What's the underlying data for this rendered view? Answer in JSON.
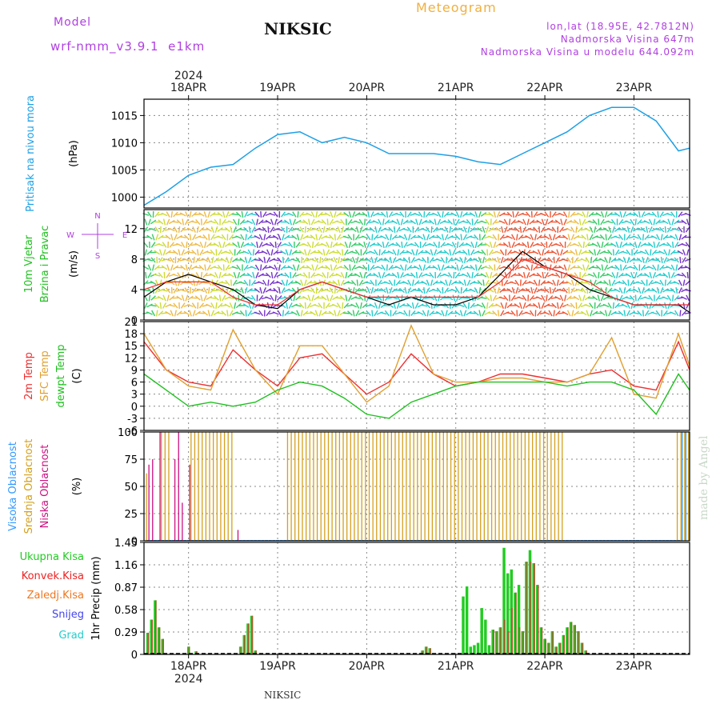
{
  "header": {
    "model_label": "Model",
    "model_name": "wrf-nmm_v3.9.1  e1km",
    "station": "NIKSIC",
    "product": "Meteogram",
    "location": "lon,lat (18.95E, 42.7812N)",
    "elevation": "Nadmorska Visina 647m",
    "model_elevation": "Nadmorska Visina u modelu 644.092m",
    "footer_station": "NIKSIC",
    "credit": "made by Angel"
  },
  "colors": {
    "pressure": "#1ea0e6",
    "t2m": "#ee3030",
    "sfc": "#e0a030",
    "dew": "#20c020",
    "cloud_high": "#3399ff",
    "cloud_mid": "#d4a020",
    "cloud_low": "#cc1080",
    "precip_total": "#22cc22",
    "precip_conv": "#ee2222",
    "precip_frz": "#ee7722",
    "snow": "#4444ee",
    "hail": "#22cccc",
    "purple_text": "#b040e0"
  },
  "time_axis": {
    "top_year": "2024",
    "bottom_year": "2024",
    "days": [
      "18APR",
      "19APR",
      "20APR",
      "21APR",
      "22APR",
      "23APR"
    ],
    "hours_from_start": [
      12,
      36,
      60,
      84,
      108,
      132
    ],
    "range_hours": [
      0,
      147
    ]
  },
  "chart_data": [
    {
      "type": "line",
      "panel": "pressure",
      "ylabel_left": "Pritisak na nivou mora",
      "unit": "(hPa)",
      "yticks": [
        1000,
        1005,
        1010,
        1015
      ],
      "ylim": [
        998,
        1018
      ],
      "x": [
        0,
        6,
        12,
        18,
        24,
        30,
        36,
        42,
        48,
        54,
        60,
        66,
        72,
        78,
        84,
        90,
        96,
        102,
        108,
        114,
        120,
        126,
        132,
        138,
        144,
        147
      ],
      "series": [
        {
          "key": "mslp",
          "color_key": "pressure",
          "values": [
            998.5,
            1001,
            1004,
            1005.5,
            1006,
            1009,
            1011.5,
            1012,
            1010,
            1011,
            1010,
            1008,
            1008,
            1008,
            1007.5,
            1006.5,
            1006,
            1008,
            1010,
            1012,
            1015,
            1016.5,
            1016.5,
            1014,
            1008.5,
            1009
          ]
        }
      ]
    },
    {
      "type": "line",
      "panel": "wind",
      "ylabel_left": [
        "10m Vjetar",
        "Brzina i Pravac"
      ],
      "unit": "(m/s)",
      "yticks": [
        0,
        4,
        8,
        12
      ],
      "ylim": [
        0,
        14.5
      ],
      "compass": [
        "N",
        "W",
        "E",
        "S"
      ],
      "x": [
        0,
        6,
        12,
        18,
        24,
        30,
        36,
        42,
        48,
        54,
        60,
        66,
        72,
        78,
        84,
        90,
        96,
        102,
        108,
        114,
        120,
        126,
        132,
        138,
        144,
        147
      ],
      "series": [
        {
          "key": "speed",
          "color": "#000000",
          "values": [
            3,
            5,
            6,
            5,
            4,
            2,
            1.5,
            4,
            5,
            4,
            3,
            2,
            3,
            2,
            2,
            3,
            6,
            9,
            7,
            6,
            4,
            3,
            2,
            2,
            2,
            1
          ]
        },
        {
          "key": "gust",
          "color_key": "t2m",
          "values": [
            4,
            5,
            5,
            5,
            3,
            2,
            2,
            4,
            5,
            4,
            3,
            3,
            3,
            3,
            3,
            3,
            5,
            8,
            7,
            6,
            5,
            3,
            2,
            2,
            2,
            2
          ]
        }
      ]
    },
    {
      "type": "line",
      "panel": "temperature",
      "ylabel_left": [
        "2m Temp",
        "SFC Temp",
        "dewpt Temp"
      ],
      "unit": "(C)",
      "yticks": [
        -6,
        -3,
        0,
        3,
        6,
        9,
        12,
        15,
        18,
        21
      ],
      "ylim": [
        -6,
        21
      ],
      "x": [
        0,
        6,
        12,
        18,
        24,
        30,
        36,
        42,
        48,
        54,
        60,
        66,
        72,
        78,
        84,
        90,
        96,
        102,
        108,
        114,
        120,
        126,
        132,
        138,
        144,
        147
      ],
      "series": [
        {
          "key": "t2m",
          "color_key": "t2m",
          "values": [
            16,
            9,
            6,
            5,
            14,
            9,
            5,
            12,
            13,
            8,
            3,
            6,
            13,
            8,
            5,
            6,
            8,
            8,
            7,
            6,
            8,
            9,
            5,
            4,
            16,
            9
          ]
        },
        {
          "key": "sfc",
          "color_key": "sfc",
          "values": [
            18,
            9,
            5,
            4,
            19,
            9,
            3,
            15,
            15,
            8,
            1,
            5,
            20,
            8,
            6,
            6,
            7,
            7,
            6,
            6,
            8,
            17,
            3,
            2,
            18,
            10
          ]
        },
        {
          "key": "dew",
          "color_key": "dew",
          "values": [
            8,
            4,
            0,
            1,
            0,
            1,
            4,
            6,
            5,
            2,
            -2,
            -3,
            1,
            3,
            5,
            6,
            6,
            6,
            6,
            5,
            6,
            6,
            4,
            -2,
            8,
            4
          ]
        }
      ]
    },
    {
      "type": "bar",
      "panel": "cloud",
      "ylabel_left": [
        "Visoka Oblacnost",
        "Srednja Oblacnost",
        "Niska Oblacnost"
      ],
      "unit": "(%)",
      "yticks": [
        0,
        25,
        50,
        75,
        100
      ],
      "ylim": [
        0,
        100
      ],
      "x": [
        1,
        2,
        3,
        4,
        5,
        6,
        7,
        8,
        9,
        10,
        11,
        12,
        13,
        14,
        15,
        16,
        17,
        18,
        19,
        20,
        21,
        22,
        23,
        24,
        25,
        26,
        27,
        28,
        29,
        30,
        31,
        32,
        33,
        34,
        35,
        36,
        37,
        38,
        39,
        40,
        41,
        42,
        43,
        44,
        45,
        46,
        47,
        48,
        49,
        50,
        51,
        52,
        53,
        54,
        55,
        56,
        57,
        58,
        59,
        60,
        61,
        62,
        63,
        64,
        65,
        66,
        67,
        68,
        69,
        70,
        71,
        72,
        73,
        74,
        75,
        76,
        77,
        78,
        79,
        80,
        81,
        82,
        83,
        84,
        85,
        86,
        87,
        88,
        89,
        90,
        91,
        92,
        93,
        94,
        95,
        96,
        97,
        98,
        99,
        100,
        101,
        102,
        103,
        104,
        105,
        106,
        107,
        108,
        109,
        110,
        111,
        112,
        113,
        114,
        115,
        116,
        117,
        118,
        119,
        120,
        121,
        122,
        123,
        124,
        125,
        126,
        127,
        128,
        129,
        130,
        131,
        132,
        133,
        134,
        135,
        136,
        137,
        138,
        139,
        140,
        141,
        142,
        143,
        144,
        145,
        146,
        147
      ],
      "series": [
        {
          "key": "high",
          "color_key": "cloud_high",
          "values": [
            0,
            0,
            0,
            0,
            0,
            0,
            0,
            0,
            0,
            0,
            0,
            0,
            0,
            0,
            0,
            0,
            0,
            0,
            0,
            0,
            0,
            0,
            0,
            0,
            0,
            0,
            0,
            0,
            0,
            0,
            0,
            0,
            0,
            0,
            0,
            0,
            0,
            0,
            0,
            0,
            0,
            0,
            0,
            0,
            0,
            0,
            0,
            0,
            0,
            0,
            0,
            0,
            0,
            0,
            0,
            0,
            0,
            0,
            0,
            0,
            0,
            0,
            0,
            0,
            0,
            0,
            0,
            0,
            0,
            0,
            0,
            0,
            0,
            0,
            0,
            0,
            0,
            0,
            0,
            0,
            0,
            0,
            0,
            0,
            0,
            0,
            0,
            0,
            0,
            0,
            0,
            0,
            0,
            0,
            0,
            0,
            0,
            0,
            0,
            0,
            0,
            0,
            0,
            0,
            0,
            0,
            0,
            0,
            0,
            0,
            0,
            0,
            0,
            0,
            0,
            0,
            0,
            0,
            0,
            0,
            0,
            0,
            0,
            0,
            0,
            0,
            0,
            0,
            0,
            0,
            0,
            0,
            0,
            0,
            0,
            0,
            0,
            0,
            0,
            0,
            0,
            0,
            0,
            0,
            100,
            100,
            100
          ]
        },
        {
          "key": "mid",
          "color_key": "cloud_mid",
          "values": [
            62,
            0,
            0,
            0,
            100,
            100,
            100,
            0,
            0,
            0,
            0,
            0,
            100,
            100,
            100,
            100,
            100,
            100,
            100,
            100,
            100,
            100,
            100,
            100,
            0,
            0,
            0,
            0,
            0,
            0,
            0,
            0,
            0,
            0,
            0,
            0,
            0,
            0,
            100,
            100,
            100,
            100,
            100,
            100,
            100,
            100,
            100,
            100,
            100,
            100,
            100,
            100,
            100,
            100,
            100,
            100,
            100,
            100,
            100,
            100,
            100,
            100,
            100,
            100,
            100,
            100,
            100,
            100,
            100,
            100,
            100,
            100,
            100,
            100,
            100,
            100,
            100,
            100,
            100,
            100,
            100,
            100,
            100,
            100,
            100,
            100,
            100,
            100,
            100,
            100,
            100,
            100,
            100,
            100,
            100,
            100,
            100,
            100,
            100,
            100,
            100,
            100,
            100,
            100,
            100,
            100,
            100,
            100,
            100,
            100,
            100,
            100,
            100,
            0,
            0,
            0,
            0,
            0,
            0,
            0,
            0,
            0,
            0,
            0,
            0,
            0,
            0,
            0,
            0,
            0,
            0,
            0,
            0,
            0,
            0,
            0,
            0,
            0,
            0,
            0,
            0,
            0,
            0,
            100,
            100,
            100,
            100
          ]
        },
        {
          "key": "low",
          "color_key": "cloud_low",
          "values": [
            70,
            75,
            0,
            100,
            0,
            0,
            0,
            75,
            100,
            35,
            0,
            70,
            0,
            0,
            0,
            0,
            0,
            0,
            0,
            0,
            0,
            0,
            0,
            0,
            10,
            0,
            0,
            0,
            0,
            0,
            0,
            0,
            0,
            0,
            0,
            0,
            0,
            0,
            0,
            0,
            0,
            0,
            0,
            0,
            0,
            0,
            0,
            0,
            0,
            0,
            0,
            0,
            0,
            0,
            0,
            0,
            0,
            0,
            0,
            0,
            0,
            0,
            0,
            0,
            0,
            0,
            0,
            0,
            0,
            0,
            0,
            0,
            0,
            0,
            0,
            0,
            0,
            0,
            0,
            0,
            0,
            0,
            0,
            0,
            0,
            0,
            0,
            0,
            0,
            0,
            0,
            0,
            0,
            0,
            0,
            0,
            0,
            0,
            0,
            0,
            0,
            0,
            0,
            0,
            0,
            0,
            0,
            0,
            0,
            0,
            0,
            0,
            0,
            0,
            0,
            0,
            0,
            0,
            0,
            0,
            0,
            0,
            0,
            0,
            0,
            0,
            0,
            0,
            0,
            0,
            0,
            0,
            0,
            0,
            0,
            0,
            0,
            0,
            0,
            0,
            0,
            0,
            0,
            0,
            0,
            0,
            0
          ]
        }
      ]
    },
    {
      "type": "bar",
      "panel": "precip",
      "ylabel_left": [
        "Ukupna Kisa",
        "Konvek.Kisa",
        "Zaledj.Kisa",
        "Snijeg",
        "Grad"
      ],
      "unit": "1hr Precip (mm)",
      "yticks": [
        0,
        0.29,
        0.58,
        0.87,
        1.16,
        1.45
      ],
      "ylim": [
        0,
        1.45
      ],
      "x": [
        1,
        2,
        3,
        4,
        5,
        12,
        14,
        26,
        27,
        28,
        29,
        30,
        75,
        76,
        77,
        86,
        87,
        88,
        89,
        90,
        91,
        92,
        93,
        94,
        95,
        96,
        97,
        98,
        99,
        100,
        101,
        102,
        103,
        104,
        105,
        106,
        107,
        108,
        109,
        110,
        111,
        112,
        113,
        114,
        115,
        116,
        117,
        118,
        119
      ],
      "series": [
        {
          "key": "total",
          "color_key": "precip_total",
          "values": [
            0.28,
            0.45,
            0.7,
            0.35,
            0.2,
            0.1,
            0.04,
            0.1,
            0.25,
            0.4,
            0.5,
            0.05,
            0.05,
            0.1,
            0.08,
            0.75,
            0.88,
            0.1,
            0.12,
            0.15,
            0.6,
            0.45,
            0.12,
            0.32,
            0.3,
            0.35,
            1.38,
            1.05,
            1.1,
            0.8,
            0.9,
            0.3,
            1.2,
            1.35,
            1.18,
            0.9,
            0.35,
            0.2,
            0.15,
            0.3,
            0.1,
            0.15,
            0.25,
            0.35,
            0.42,
            0.38,
            0.3,
            0.15,
            0.05
          ]
        },
        {
          "key": "conv",
          "color_key": "precip_conv",
          "values": [
            0.28,
            0.45,
            0.7,
            0.35,
            0.2,
            0.1,
            0.04,
            0.1,
            0.25,
            0.4,
            0.5,
            0.05,
            0.05,
            0.1,
            0.08,
            0,
            0,
            0,
            0,
            0,
            0,
            0,
            0,
            0.32,
            0.3,
            0.35,
            0.45,
            0.3,
            0.6,
            0.8,
            0.35,
            0.3,
            1.2,
            1.2,
            1.18,
            0.9,
            0.35,
            0.2,
            0.15,
            0.3,
            0.1,
            0.15,
            0.25,
            0.35,
            0.42,
            0.38,
            0.3,
            0.15,
            0.05
          ]
        }
      ]
    }
  ]
}
